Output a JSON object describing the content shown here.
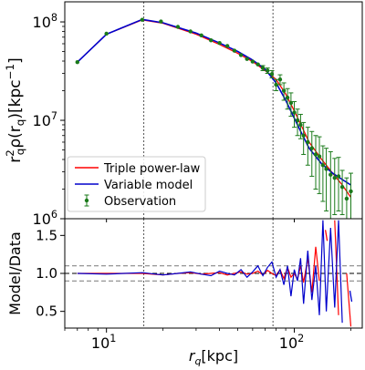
{
  "chart_data": [
    {
      "type": "line",
      "xscale": "log",
      "yscale": "log",
      "xlim": [
        6,
        230
      ],
      "ylim": [
        1000000,
        160000000
      ],
      "ylabel": "$r_q^2\\rho(r_q)$[kpc$^{-1}$]",
      "ylabel_parts": {
        "base": "r",
        "sup": "2",
        "sub": "q",
        "mid": "ρ(r",
        "sub2": "q",
        "close": ")[kpc",
        "sup2": "−1",
        "end": "]"
      },
      "y_ticks": [
        {
          "value": 1000000,
          "base": "10",
          "exp": "6"
        },
        {
          "value": 10000000,
          "base": "10",
          "exp": "7"
        },
        {
          "value": 100000000,
          "base": "10",
          "exp": "8"
        }
      ],
      "vlines": [
        15.8,
        77
      ],
      "legend": {
        "position": "lower-left",
        "entries": [
          {
            "label": "Triple power-law",
            "color": "#ff0000",
            "style": "line"
          },
          {
            "label": "Variable model",
            "color": "#0000cc",
            "style": "line"
          },
          {
            "label": "Observation",
            "color": "#1a7a1a",
            "style": "errorbar"
          }
        ]
      },
      "series": [
        {
          "name": "Triple power-law",
          "color": "#ff0000",
          "x": [
            7,
            10,
            15.5,
            20,
            30,
            40,
            50,
            60,
            70,
            80,
            90,
            100,
            110,
            120,
            140,
            160,
            180,
            200
          ],
          "y": [
            39000000,
            75000000,
            105000000,
            97000000,
            75000000,
            59000000,
            48000000,
            39500000,
            32000000,
            26000000,
            18500000,
            12500000,
            8500000,
            6000000,
            4000000,
            2900000,
            2200000,
            1650000
          ]
        },
        {
          "name": "Variable model",
          "color": "#0000cc",
          "x": [
            7,
            10,
            15.5,
            20,
            30,
            40,
            50,
            60,
            70,
            80,
            90,
            100,
            110,
            120,
            140,
            160,
            180,
            200
          ],
          "y": [
            39000000,
            75000000,
            106000000,
            98000000,
            77000000,
            61000000,
            50000000,
            41000000,
            33000000,
            24000000,
            16000000,
            10500000,
            7200000,
            5200000,
            3600000,
            2900000,
            2500000,
            2200000
          ]
        },
        {
          "name": "Observation",
          "color": "#1a7a1a",
          "points": [
            {
              "x": 7,
              "y": 39000000,
              "err": 0
            },
            {
              "x": 10,
              "y": 76000000,
              "err": 0
            },
            {
              "x": 15.5,
              "y": 105000000,
              "err": 0
            },
            {
              "x": 19.5,
              "y": 101000000,
              "err": 0
            },
            {
              "x": 24,
              "y": 89000000,
              "err": 0
            },
            {
              "x": 28,
              "y": 80000000,
              "err": 0
            },
            {
              "x": 32,
              "y": 73000000,
              "err": 0
            },
            {
              "x": 36,
              "y": 65000000,
              "err": 0
            },
            {
              "x": 40,
              "y": 61000000,
              "err": 0
            },
            {
              "x": 44,
              "y": 57000000,
              "err": 0
            },
            {
              "x": 48,
              "y": 51000000,
              "err": 0
            },
            {
              "x": 52,
              "y": 46000000,
              "err": 0
            },
            {
              "x": 56,
              "y": 42000000,
              "err": 0
            },
            {
              "x": 60,
              "y": 39500000,
              "err": 0
            },
            {
              "x": 64,
              "y": 37000000,
              "err": 0
            },
            {
              "x": 68,
              "y": 34000000,
              "err": 2000000
            },
            {
              "x": 72,
              "y": 32000000,
              "err": 2000000
            },
            {
              "x": 76,
              "y": 29500000,
              "err": 2500000
            },
            {
              "x": 80,
              "y": 23000000,
              "err": 3000000
            },
            {
              "x": 84,
              "y": 26000000,
              "err": 3000000
            },
            {
              "x": 88,
              "y": 20000000,
              "err": 4000000
            },
            {
              "x": 92,
              "y": 17000000,
              "err": 4000000
            },
            {
              "x": 96,
              "y": 15000000,
              "err": 4000000
            },
            {
              "x": 100,
              "y": 12000000,
              "err": 3500000
            },
            {
              "x": 104,
              "y": 10000000,
              "err": 3000000
            },
            {
              "x": 108,
              "y": 9000000,
              "err": 2500000
            },
            {
              "x": 112,
              "y": 7000000,
              "err": 2500000
            },
            {
              "x": 118,
              "y": 6000000,
              "err": 2500000
            },
            {
              "x": 124,
              "y": 5200000,
              "err": 2500000
            },
            {
              "x": 130,
              "y": 4500000,
              "err": 2500000
            },
            {
              "x": 136,
              "y": 4300000,
              "err": 2500000
            },
            {
              "x": 142,
              "y": 3500000,
              "err": 2000000
            },
            {
              "x": 148,
              "y": 3200000,
              "err": 2000000
            },
            {
              "x": 156,
              "y": 2800000,
              "err": 2000000
            },
            {
              "x": 164,
              "y": 2600000,
              "err": 1500000
            },
            {
              "x": 172,
              "y": 2700000,
              "err": 1500000
            },
            {
              "x": 180,
              "y": 2100000,
              "err": 1000000
            },
            {
              "x": 190,
              "y": 1600000,
              "err": 1000000
            },
            {
              "x": 200,
              "y": 1900000,
              "err": 1000000
            }
          ]
        }
      ]
    },
    {
      "type": "line",
      "xscale": "log",
      "xlim": [
        6,
        230
      ],
      "ylim": [
        0.28,
        1.72
      ],
      "xlabel": "$r_q$[kpc]",
      "xlabel_parts": {
        "base": "r",
        "sub": "q",
        "unit": "[kpc]"
      },
      "ylabel": "Model/Data",
      "y_ticks": [
        "0.5",
        "1.0",
        "1.5"
      ],
      "y_tick_values": [
        0.5,
        1.0,
        1.5
      ],
      "x_ticks": [
        {
          "value": 10,
          "base": "10",
          "exp": "1"
        },
        {
          "value": 100,
          "base": "10",
          "exp": "2"
        }
      ],
      "hlines": [
        {
          "y": 1.0,
          "style": "dashed",
          "color": "#000000"
        },
        {
          "y": 1.1,
          "style": "dashed",
          "color": "#888888"
        },
        {
          "y": 0.9,
          "style": "dashed",
          "color": "#888888"
        }
      ],
      "vlines": [
        15.8,
        77
      ],
      "series": [
        {
          "name": "Triple power-law",
          "color": "#ff0000",
          "x": [
            7,
            10,
            15.5,
            20,
            24,
            28,
            32,
            36,
            40,
            44,
            48,
            52,
            56,
            60,
            64,
            68,
            72,
            76,
            80,
            84,
            88,
            92,
            96,
            100,
            104,
            108,
            112,
            118,
            124,
            130,
            136,
            142,
            148,
            156,
            164,
            172,
            180,
            190,
            200
          ],
          "y": [
            1.0,
            1.0,
            1.0,
            0.98,
            1.0,
            1.01,
            0.99,
            1.0,
            1.01,
            0.98,
            1.0,
            1.02,
            0.99,
            1.0,
            1.03,
            0.98,
            1.04,
            1.0,
            0.97,
            1.05,
            0.93,
            1.08,
            0.95,
            1.0,
            0.92,
            1.1,
            0.88,
            1.2,
            0.75,
            1.35,
            0.9,
            null,
            1.5,
            null,
            1.7,
            0.45,
            null,
            1.0,
            0.3
          ]
        },
        {
          "name": "Variable model",
          "color": "#0000cc",
          "x": [
            7,
            10,
            15.5,
            20,
            24,
            28,
            32,
            36,
            40,
            44,
            48,
            52,
            56,
            60,
            64,
            68,
            72,
            76,
            80,
            84,
            88,
            92,
            96,
            100,
            104,
            108,
            112,
            118,
            124,
            130,
            136,
            142,
            148,
            156,
            164,
            172,
            180,
            190,
            200
          ],
          "y": [
            1.0,
            0.99,
            1.01,
            0.98,
            1.0,
            1.02,
            0.99,
            0.97,
            1.03,
            1.0,
            0.98,
            1.05,
            0.95,
            1.02,
            1.1,
            0.97,
            1.08,
            1.15,
            0.95,
            1.05,
            0.85,
            1.1,
            0.7,
            1.05,
            0.9,
            1.2,
            0.6,
            1.3,
            0.65,
            1.1,
            0.45,
            1.7,
            0.5,
            1.6,
            0.55,
            1.7,
            0.35,
            null,
            0.7
          ]
        }
      ]
    }
  ]
}
